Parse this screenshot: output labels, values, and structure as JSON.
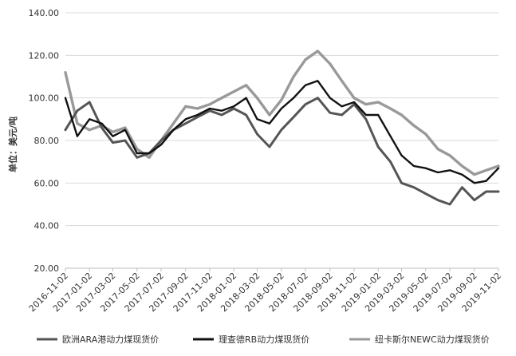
{
  "chart_data": {
    "type": "line",
    "ylabel": "单位：美元/吨",
    "ylim": [
      20,
      140
    ],
    "yticks": [
      "20.00",
      "40.00",
      "60.00",
      "80.00",
      "100.00",
      "120.00",
      "140.00"
    ],
    "grid": true,
    "legend_position": "bottom",
    "x_tick_labels": [
      "2016-11-02",
      "2017-01-02",
      "2017-03-02",
      "2017-05-02",
      "2017-07-02",
      "2017-09-02",
      "2017-11-02",
      "2018-01-02",
      "2018-03-02",
      "2018-05-02",
      "2018-07-02",
      "2018-09-02",
      "2018-11-02",
      "2019-01-02",
      "2019-03-02",
      "2019-05-02",
      "2019-07-02",
      "2019-09-02",
      "2019-11-02"
    ],
    "x": [
      "2016-11-02",
      "2016-12-02",
      "2017-01-02",
      "2017-02-02",
      "2017-03-02",
      "2017-04-02",
      "2017-05-02",
      "2017-06-02",
      "2017-07-02",
      "2017-08-02",
      "2017-09-02",
      "2017-10-02",
      "2017-11-02",
      "2017-12-02",
      "2018-01-02",
      "2018-02-02",
      "2018-03-02",
      "2018-04-02",
      "2018-05-02",
      "2018-06-02",
      "2018-07-02",
      "2018-08-02",
      "2018-09-02",
      "2018-10-02",
      "2018-11-02",
      "2018-12-02",
      "2019-01-02",
      "2019-02-02",
      "2019-03-02",
      "2019-04-02",
      "2019-05-02",
      "2019-06-02",
      "2019-07-02",
      "2019-08-02",
      "2019-09-02",
      "2019-10-02",
      "2019-11-02"
    ],
    "series": [
      {
        "name": "欧洲ARA港动力煤现货价",
        "color": "#555555",
        "values": [
          85,
          94,
          98,
          86,
          79,
          80,
          72,
          74,
          80,
          85,
          88,
          91,
          94,
          92,
          95,
          92,
          83,
          77,
          85,
          91,
          97,
          100,
          93,
          92,
          97,
          90,
          77,
          70,
          60,
          58,
          55,
          52,
          50,
          58,
          52,
          56,
          56
        ]
      },
      {
        "name": "理查德RB动力煤现货价",
        "color": "#111111",
        "values": [
          100,
          82,
          90,
          88,
          82,
          85,
          74,
          74,
          78,
          85,
          90,
          92,
          95,
          94,
          96,
          100,
          90,
          88,
          95,
          100,
          106,
          108,
          100,
          96,
          98,
          92,
          92,
          82,
          73,
          68,
          67,
          65,
          66,
          64,
          60,
          61,
          67
        ]
      },
      {
        "name": "纽卡斯尔NEWC动力煤现货价",
        "color": "#999999",
        "values": [
          112,
          88,
          85,
          87,
          84,
          86,
          76,
          72,
          80,
          88,
          96,
          95,
          97,
          100,
          103,
          106,
          100,
          92,
          99,
          110,
          118,
          122,
          116,
          108,
          100,
          97,
          98,
          95,
          92,
          87,
          83,
          76,
          73,
          68,
          64,
          66,
          68
        ]
      }
    ]
  }
}
